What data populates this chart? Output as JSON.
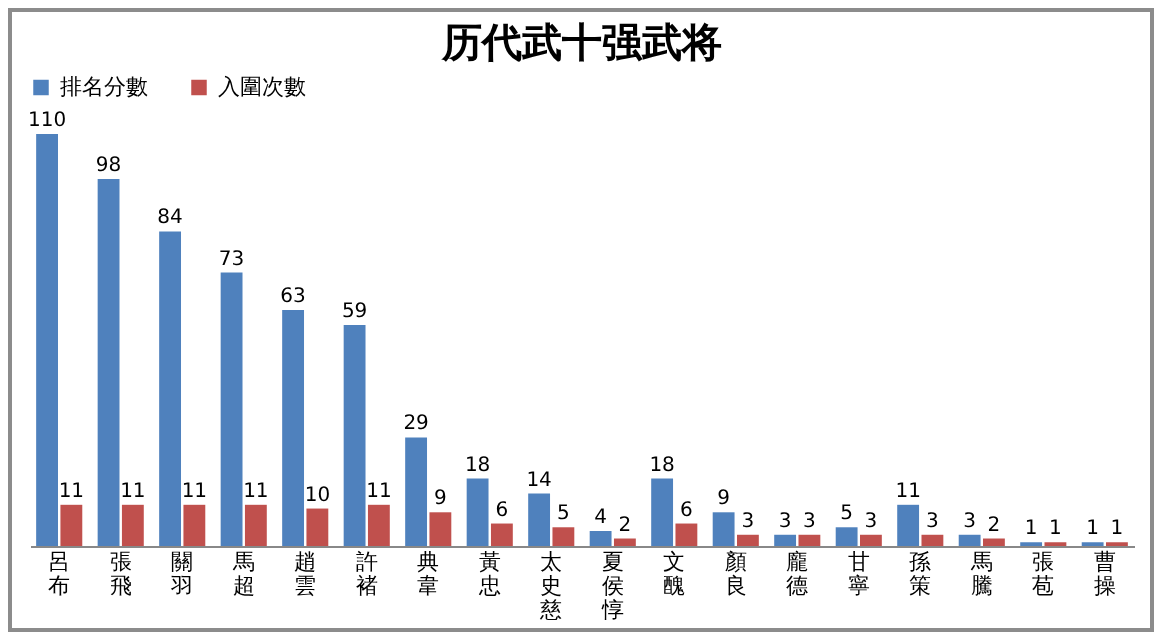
{
  "chart_data": {
    "type": "bar",
    "title": "历代武十强武将",
    "categories": [
      "呂布",
      "張飛",
      "關羽",
      "馬超",
      "趙雲",
      "許褚",
      "典韋",
      "黃忠",
      "太史慈",
      "夏侯惇",
      "文醜",
      "顏良",
      "龐德",
      "甘寧",
      "孫策",
      "馬騰",
      "張苞",
      "曹操"
    ],
    "series": [
      {
        "name": "排名分數",
        "color": "#4f81bd",
        "values": [
          110,
          98,
          84,
          73,
          63,
          59,
          29,
          18,
          14,
          4,
          18,
          9,
          3,
          5,
          11,
          3,
          1,
          1
        ]
      },
      {
        "name": "入圍次數",
        "color": "#c0504d",
        "values": [
          11,
          11,
          11,
          11,
          10,
          11,
          9,
          6,
          5,
          2,
          6,
          3,
          3,
          3,
          3,
          2,
          1,
          1
        ]
      }
    ],
    "data_labels": true,
    "legend": "top",
    "grid": false
  }
}
